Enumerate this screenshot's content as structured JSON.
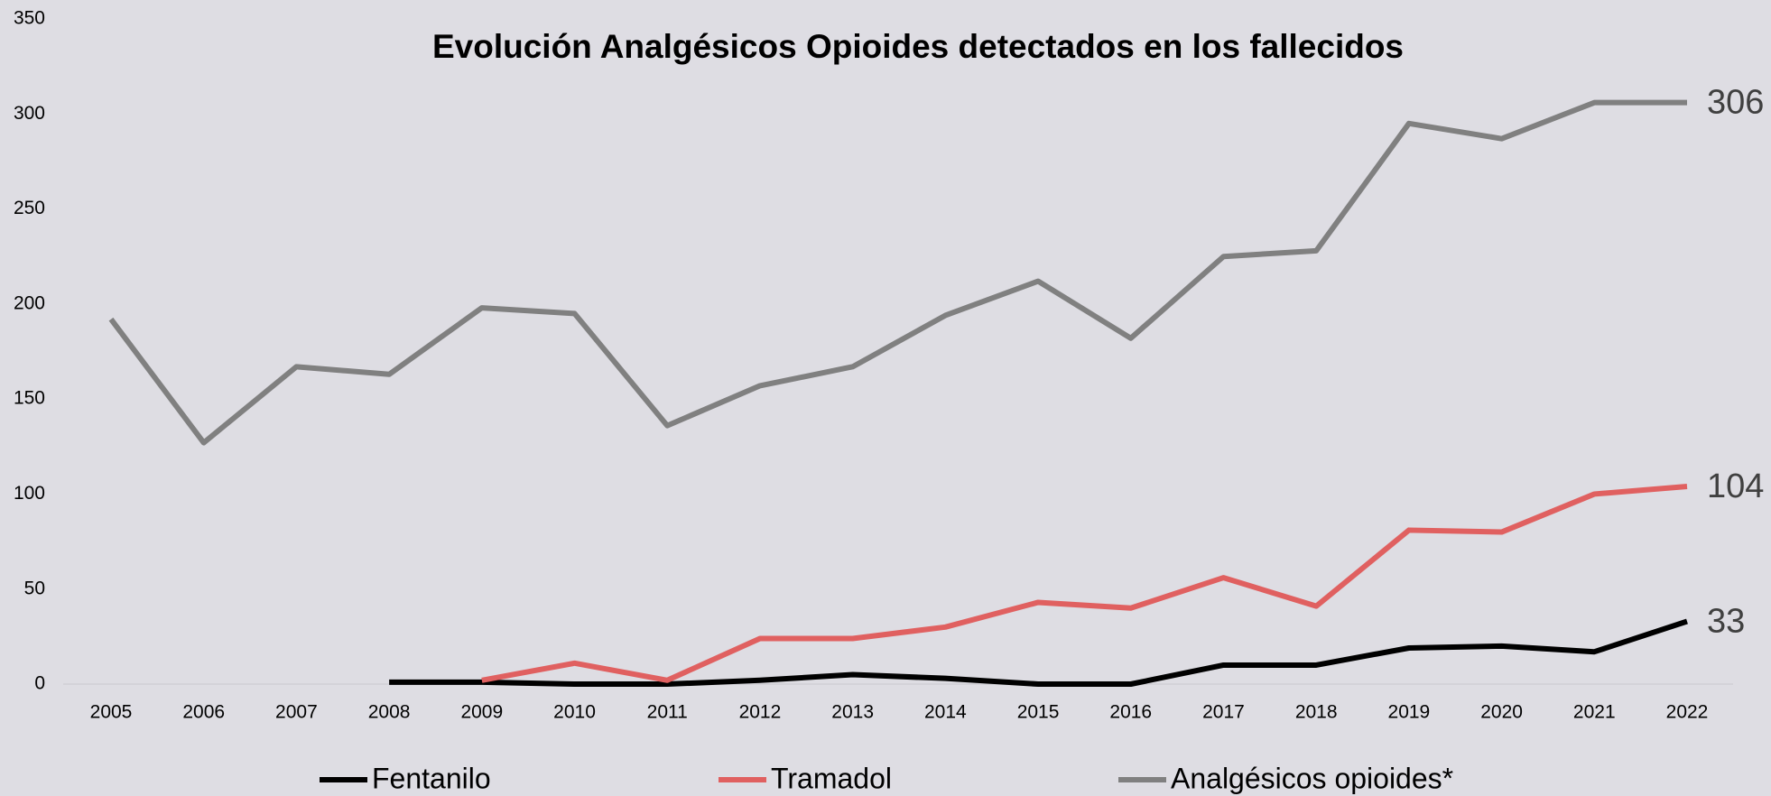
{
  "chart_data": {
    "type": "line",
    "title": "Evolución Analgésicos Opioides detectados en los fallecidos",
    "categories": [
      "2005",
      "2006",
      "2007",
      "2008",
      "2009",
      "2010",
      "2011",
      "2012",
      "2013",
      "2014",
      "2015",
      "2016",
      "2017",
      "2018",
      "2019",
      "2020",
      "2021",
      "2022"
    ],
    "series": [
      {
        "name": "Fentanilo",
        "color": "#000000",
        "values": [
          null,
          null,
          null,
          1,
          1,
          0,
          0,
          2,
          5,
          3,
          0,
          0,
          10,
          10,
          19,
          20,
          17,
          33
        ]
      },
      {
        "name": "Tramadol",
        "color": "#e06060",
        "values": [
          null,
          null,
          null,
          null,
          2,
          11,
          2,
          24,
          24,
          30,
          43,
          40,
          56,
          41,
          81,
          80,
          100,
          104
        ]
      },
      {
        "name": "Analgésicos opioides*",
        "color": "#808080",
        "values": [
          192,
          127,
          167,
          163,
          198,
          195,
          136,
          157,
          167,
          194,
          212,
          182,
          225,
          228,
          295,
          287,
          306,
          306
        ]
      }
    ],
    "ylim": [
      0,
      350
    ],
    "yticks": [
      0,
      50,
      100,
      150,
      200,
      250,
      300,
      350
    ],
    "grid": false,
    "legend": "bottom"
  }
}
